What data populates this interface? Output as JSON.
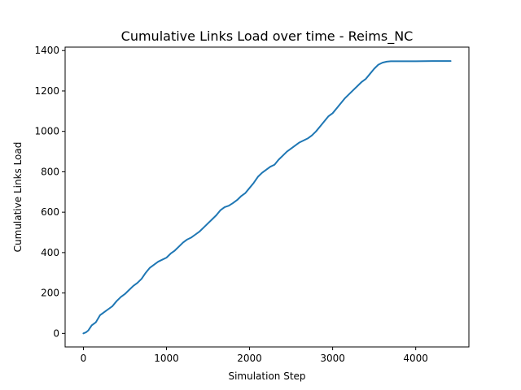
{
  "chart_data": {
    "type": "line",
    "title": "Cumulative Links Load over time - Reims_NC",
    "xlabel": "Simulation Step",
    "ylabel": "Cumulative Links Load",
    "xlim": [
      -220,
      4640
    ],
    "ylim": [
      -67,
      1417
    ],
    "xticks": [
      0,
      1000,
      2000,
      3000,
      4000
    ],
    "yticks": [
      0,
      200,
      400,
      600,
      800,
      1000,
      1200,
      1400
    ],
    "grid": false,
    "line_color": "#1f77b4",
    "series": [
      {
        "x": [
          0,
          30,
          60,
          100,
          150,
          200,
          250,
          300,
          350,
          400,
          450,
          500,
          550,
          600,
          650,
          700,
          750,
          800,
          850,
          900,
          950,
          1000,
          1050,
          1100,
          1150,
          1200,
          1250,
          1300,
          1350,
          1400,
          1450,
          1500,
          1550,
          1600,
          1650,
          1700,
          1750,
          1800,
          1850,
          1900,
          1950,
          2000,
          2050,
          2100,
          2150,
          2200,
          2250,
          2300,
          2350,
          2400,
          2450,
          2500,
          2550,
          2600,
          2650,
          2700,
          2750,
          2800,
          2850,
          2900,
          2950,
          3000,
          3050,
          3100,
          3150,
          3200,
          3250,
          3300,
          3350,
          3400,
          3450,
          3500,
          3550,
          3600,
          3650,
          3700,
          3800,
          4000,
          4200,
          4420
        ],
        "y": [
          0,
          5,
          15,
          40,
          55,
          90,
          105,
          120,
          135,
          160,
          180,
          195,
          215,
          235,
          250,
          270,
          300,
          325,
          340,
          355,
          365,
          375,
          395,
          410,
          430,
          450,
          465,
          475,
          490,
          505,
          525,
          545,
          565,
          585,
          610,
          625,
          632,
          645,
          660,
          680,
          695,
          720,
          745,
          775,
          795,
          810,
          825,
          835,
          860,
          880,
          900,
          915,
          930,
          945,
          955,
          965,
          980,
          1000,
          1025,
          1050,
          1075,
          1090,
          1115,
          1140,
          1165,
          1185,
          1205,
          1225,
          1245,
          1260,
          1285,
          1310,
          1330,
          1340,
          1345,
          1347,
          1347,
          1347,
          1348,
          1348
        ]
      }
    ]
  }
}
